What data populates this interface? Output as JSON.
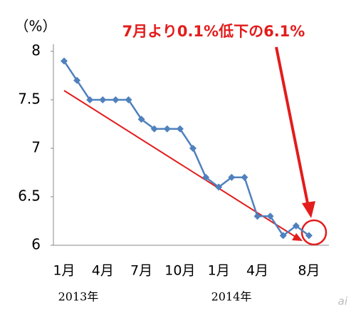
{
  "chart_data": {
    "type": "line",
    "y_label": "（%）",
    "annotation": "7月より0.1%低下の6.1%",
    "year_labels": [
      "2013年",
      "2014年"
    ],
    "watermark": "ai",
    "categories": [
      "1月",
      null,
      null,
      "4月",
      null,
      null,
      "7月",
      null,
      null,
      "10月",
      null,
      null,
      "1月",
      null,
      null,
      "4月",
      null,
      null,
      null,
      "8月"
    ],
    "series": [
      {
        "color": "#4f81bd",
        "values": [
          7.9,
          7.7,
          7.5,
          7.5,
          7.5,
          7.5,
          7.3,
          7.2,
          7.2,
          7.2,
          7.0,
          6.7,
          6.6,
          6.7,
          6.7,
          6.3,
          6.3,
          6.1,
          6.2,
          6.1
        ]
      }
    ],
    "ylim": [
      6,
      8
    ],
    "yticks": [
      6,
      6.5,
      7,
      7.5,
      8
    ],
    "grid": false,
    "annotation_color": "#e31c1c"
  }
}
